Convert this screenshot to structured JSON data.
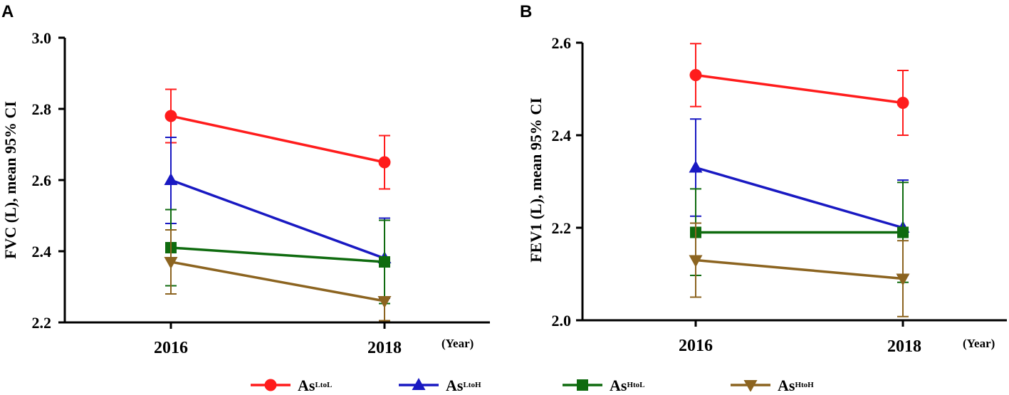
{
  "chart_data": [
    {
      "type": "line",
      "panel_label": "A",
      "categories": [
        "2016",
        "2018"
      ],
      "x_unit": "(Year)",
      "ylabel": "FVC (L), mean 95% CI",
      "ylim": [
        2.2,
        3.0
      ],
      "yticks": [
        "2.2",
        "2.4",
        "2.6",
        "2.8",
        "3.0"
      ],
      "series": [
        {
          "name": "LtoL",
          "values": [
            2.78,
            2.65
          ],
          "ci_low": [
            2.705,
            2.575
          ],
          "ci_high": [
            2.855,
            2.725
          ]
        },
        {
          "name": "LtoH",
          "values": [
            2.6,
            2.38
          ],
          "ci_low": [
            2.478,
            2.268
          ],
          "ci_high": [
            2.72,
            2.493
          ]
        },
        {
          "name": "HtoL",
          "values": [
            2.41,
            2.37
          ],
          "ci_low": [
            2.303,
            2.253
          ],
          "ci_high": [
            2.517,
            2.487
          ]
        },
        {
          "name": "HtoH",
          "values": [
            2.37,
            2.26
          ],
          "ci_low": [
            2.28,
            2.205
          ],
          "ci_high": [
            2.46,
            2.272
          ]
        }
      ]
    },
    {
      "type": "line",
      "panel_label": "B",
      "categories": [
        "2016",
        "2018"
      ],
      "x_unit": "(Year)",
      "ylabel": "FEV1 (L), mean 95% CI",
      "ylim": [
        2.0,
        2.6
      ],
      "yticks": [
        "2.0",
        "2.2",
        "2.4",
        "2.6"
      ],
      "series": [
        {
          "name": "LtoL",
          "values": [
            2.53,
            2.47
          ],
          "ci_low": [
            2.462,
            2.4
          ],
          "ci_high": [
            2.598,
            2.54
          ]
        },
        {
          "name": "LtoH",
          "values": [
            2.33,
            2.2
          ],
          "ci_low": [
            2.225,
            2.097
          ],
          "ci_high": [
            2.435,
            2.303
          ]
        },
        {
          "name": "HtoL",
          "values": [
            2.19,
            2.19
          ],
          "ci_low": [
            2.097,
            2.082
          ],
          "ci_high": [
            2.284,
            2.298
          ]
        },
        {
          "name": "HtoH",
          "values": [
            2.13,
            2.09
          ],
          "ci_low": [
            2.05,
            2.008
          ],
          "ci_high": [
            2.21,
            2.172
          ]
        }
      ]
    }
  ],
  "legend": [
    {
      "prefix": "As",
      "sub": "LtoL",
      "color": "#ff1c1c",
      "marker": "circle"
    },
    {
      "prefix": "As",
      "sub": "LtoH",
      "color": "#1919c2",
      "marker": "triangle-up"
    },
    {
      "prefix": "As",
      "sub": "HtoL",
      "color": "#0f6b0f",
      "marker": "square"
    },
    {
      "prefix": "As",
      "sub": "HtoH",
      "color": "#8c6420",
      "marker": "triangle-down"
    }
  ]
}
